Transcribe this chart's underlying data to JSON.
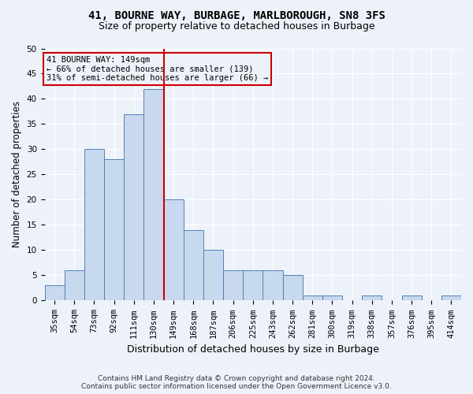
{
  "title1": "41, BOURNE WAY, BURBAGE, MARLBOROUGH, SN8 3FS",
  "title2": "Size of property relative to detached houses in Burbage",
  "xlabel": "Distribution of detached houses by size in Burbage",
  "ylabel": "Number of detached properties",
  "categories": [
    "35sqm",
    "54sqm",
    "73sqm",
    "92sqm",
    "111sqm",
    "130sqm",
    "149sqm",
    "168sqm",
    "187sqm",
    "206sqm",
    "225sqm",
    "243sqm",
    "262sqm",
    "281sqm",
    "300sqm",
    "319sqm",
    "338sqm",
    "357sqm",
    "376sqm",
    "395sqm",
    "414sqm"
  ],
  "values": [
    3,
    6,
    30,
    28,
    37,
    42,
    20,
    14,
    10,
    6,
    6,
    6,
    5,
    1,
    1,
    0,
    1,
    0,
    1,
    0,
    1
  ],
  "bar_color": "#c8d8ee",
  "bar_edge_color": "#5080b8",
  "vline_color": "#cc0000",
  "annotation_text": "41 BOURNE WAY: 149sqm\n← 66% of detached houses are smaller (139)\n31% of semi-detached houses are larger (66) →",
  "annotation_box_color": "#cc0000",
  "ylim": [
    0,
    50
  ],
  "yticks": [
    0,
    5,
    10,
    15,
    20,
    25,
    30,
    35,
    40,
    45,
    50
  ],
  "footer_text": "Contains HM Land Registry data © Crown copyright and database right 2024.\nContains public sector information licensed under the Open Government Licence v3.0.",
  "background_color": "#edf2fa",
  "grid_color": "#ffffff",
  "title1_fontsize": 10,
  "title2_fontsize": 9,
  "xlabel_fontsize": 9,
  "ylabel_fontsize": 8.5,
  "tick_fontsize": 7.5,
  "annotation_fontsize": 7.5,
  "footer_fontsize": 6.5
}
